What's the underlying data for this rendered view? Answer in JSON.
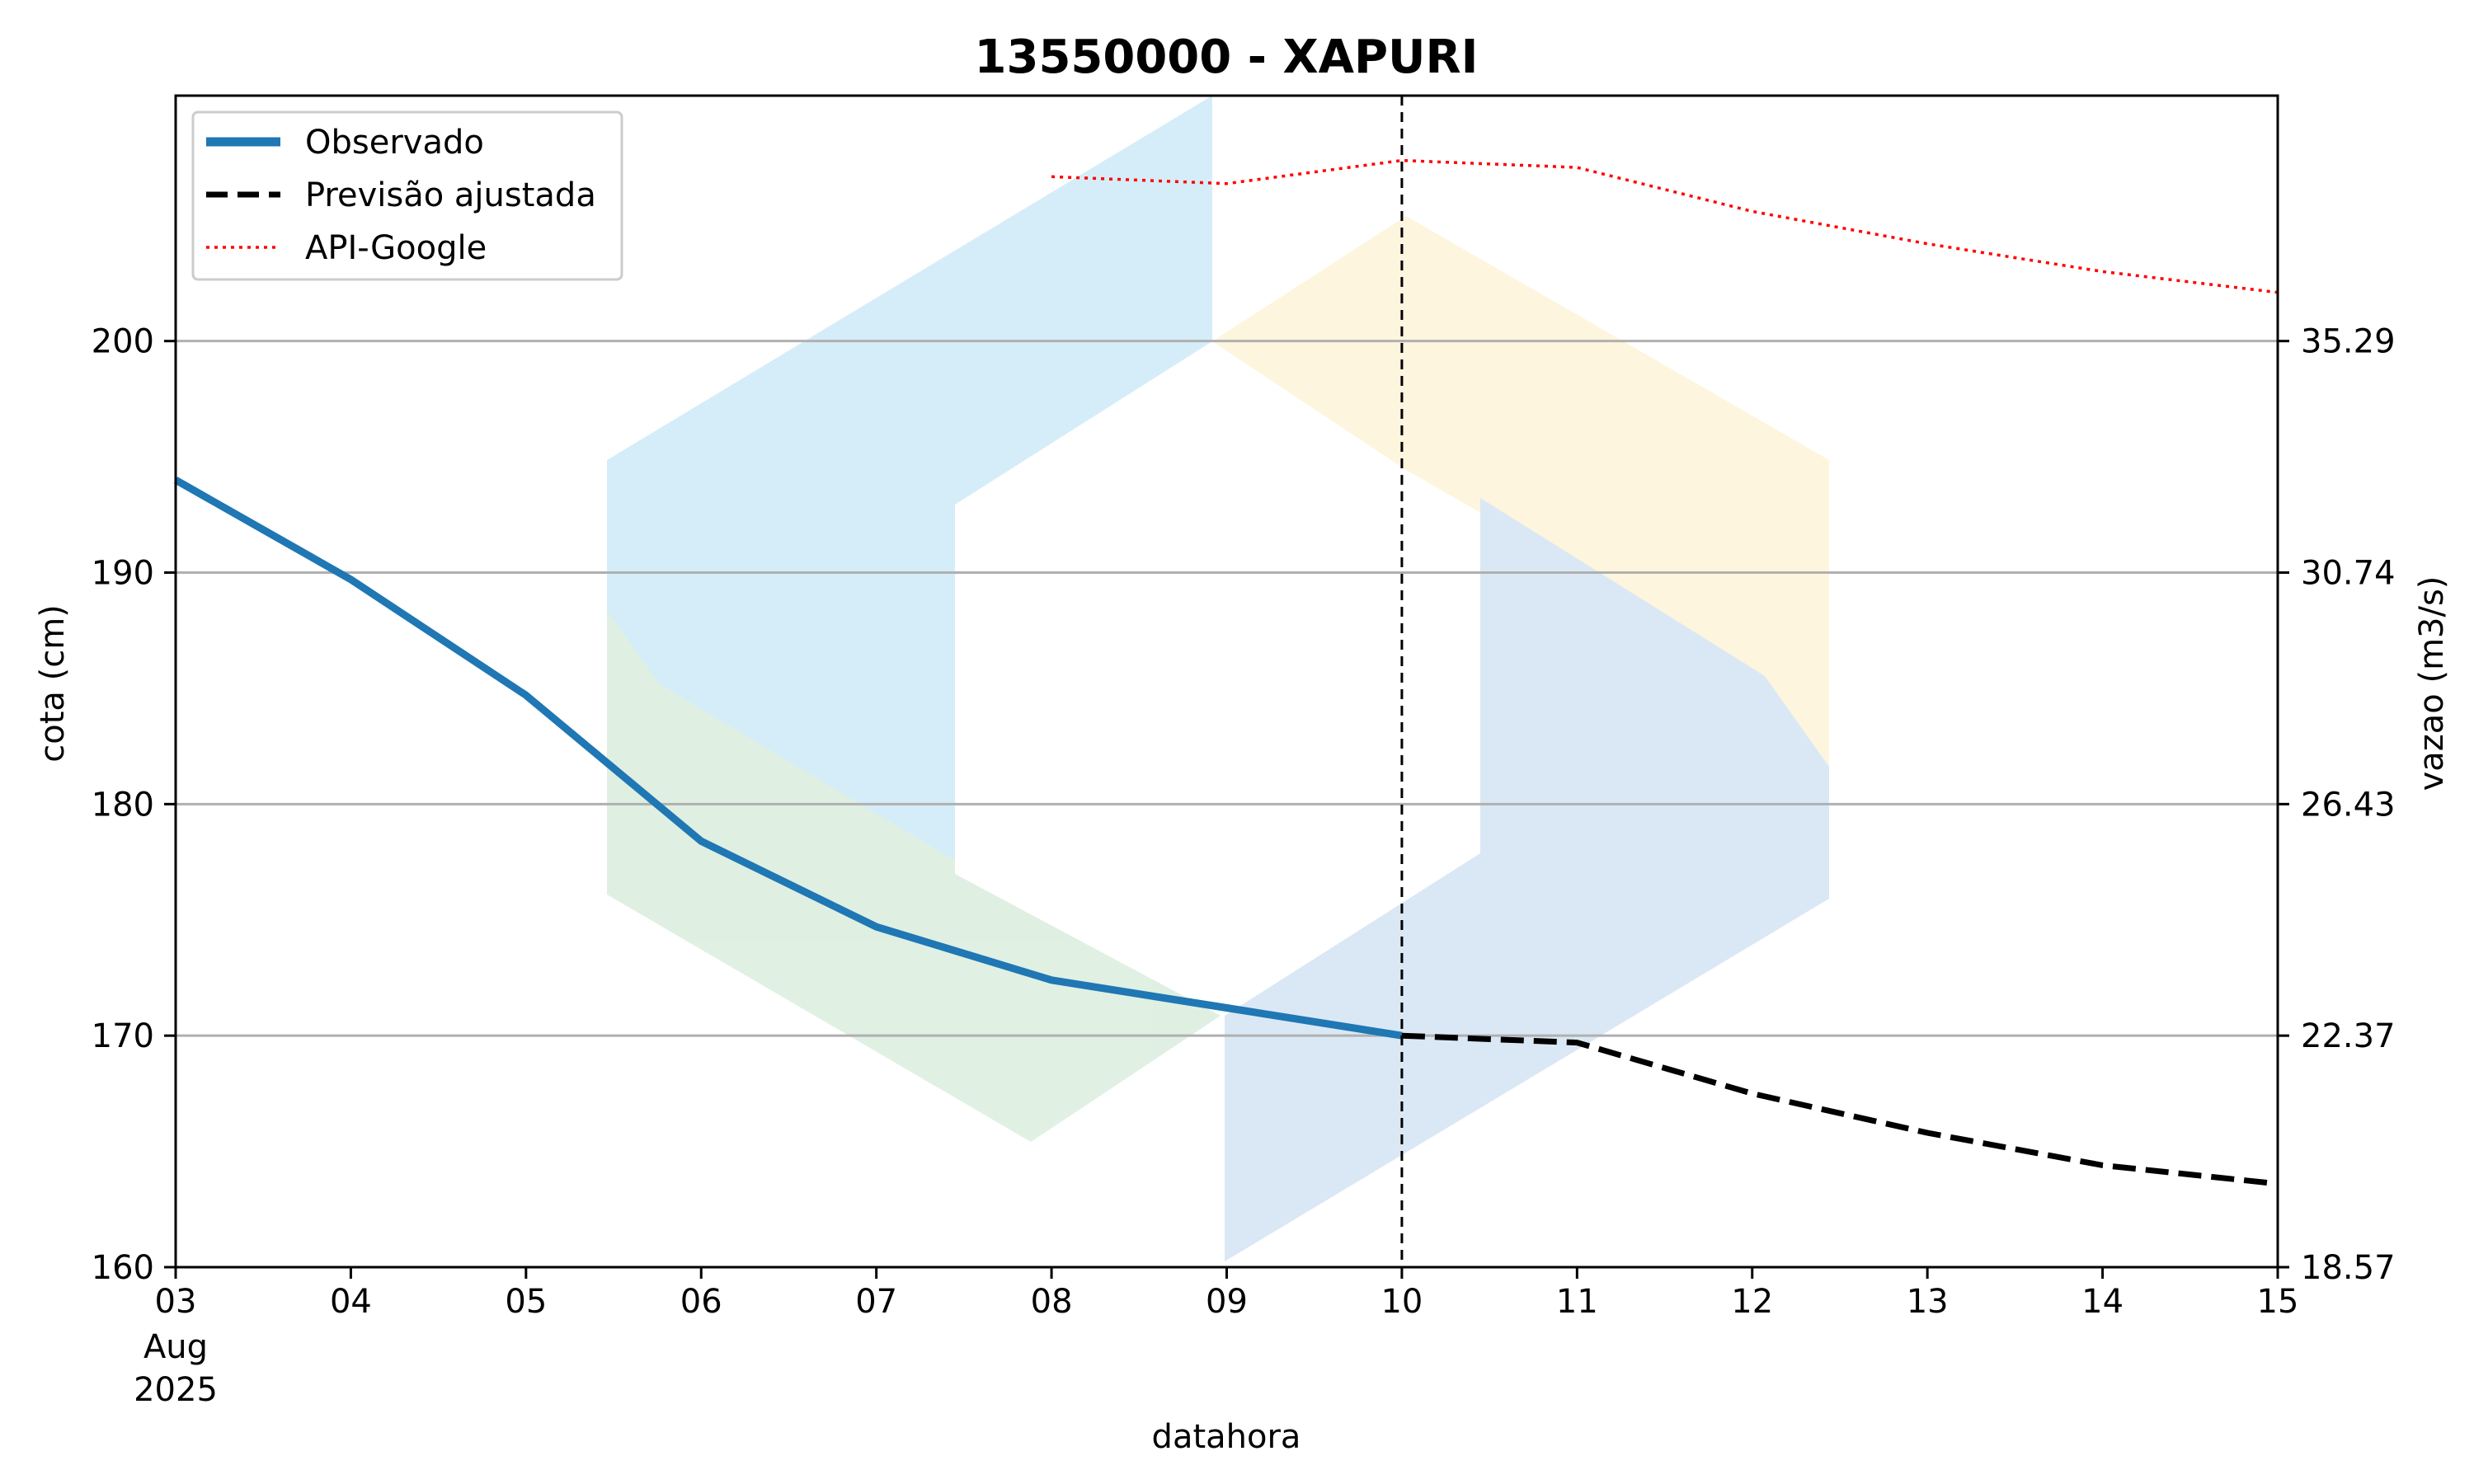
{
  "chart_data": {
    "type": "line",
    "title": "13550000 - XAPURI",
    "xlabel": "datahora",
    "ylabel": "cota (cm)",
    "ylabel_right": "vazao (m3/s)",
    "x": [
      "2025-08-03",
      "2025-08-04",
      "2025-08-05",
      "2025-08-06",
      "2025-08-07",
      "2025-08-08",
      "2025-08-09",
      "2025-08-10",
      "2025-08-11",
      "2025-08-12",
      "2025-08-13",
      "2025-08-14",
      "2025-08-15"
    ],
    "xlim": [
      "2025-08-03",
      "2025-08-15"
    ],
    "x_tick_labels": [
      "03",
      "04",
      "05",
      "06",
      "07",
      "08",
      "09",
      "10",
      "11",
      "12",
      "13",
      "14",
      "15"
    ],
    "x_tick_sublabels": [
      "Aug",
      "2025"
    ],
    "ylim": [
      160,
      210.6
    ],
    "y_ticks": [
      160,
      170,
      180,
      190,
      200
    ],
    "y_right_ticks": [
      {
        "at": 160,
        "label": "18.57"
      },
      {
        "at": 170,
        "label": "22.37"
      },
      {
        "at": 180,
        "label": "26.43"
      },
      {
        "at": 190,
        "label": "30.74"
      },
      {
        "at": 200,
        "label": "35.29"
      }
    ],
    "grid": "horizontal",
    "legend_position": "upper left",
    "forecast_start": "2025-08-10",
    "series": [
      {
        "name": "Observado",
        "style": "solid",
        "color": "#1f77b4",
        "x": [
          "2025-08-03",
          "2025-08-04",
          "2025-08-05",
          "2025-08-06",
          "2025-08-07",
          "2025-08-08",
          "2025-08-09",
          "2025-08-10"
        ],
        "values": [
          194,
          189.7,
          184.7,
          178.4,
          174.7,
          172.4,
          171.2,
          170
        ]
      },
      {
        "name": "Previsão ajustada",
        "style": "dashed",
        "color": "#000000",
        "x": [
          "2025-08-10",
          "2025-08-11",
          "2025-08-12",
          "2025-08-13",
          "2025-08-14",
          "2025-08-15"
        ],
        "values": [
          170,
          169.7,
          167.5,
          165.8,
          164.4,
          163.6
        ]
      },
      {
        "name": "API-Google",
        "style": "dotted",
        "color": "#ff0000",
        "x": [
          "2025-08-08",
          "2025-08-09",
          "2025-08-10",
          "2025-08-11",
          "2025-08-12",
          "2025-08-13",
          "2025-08-14",
          "2025-08-15"
        ],
        "values": [
          207.1,
          206.8,
          207.8,
          207.5,
          205.6,
          204.2,
          203,
          202.1
        ]
      }
    ]
  },
  "colors": {
    "watermark_blue": "#bfe4f5",
    "watermark_blue_dark": "#c6dcef",
    "watermark_green": "#cfe8d4",
    "watermark_yellow": "#fdf0cc",
    "grid": "#b0b0b0"
  }
}
